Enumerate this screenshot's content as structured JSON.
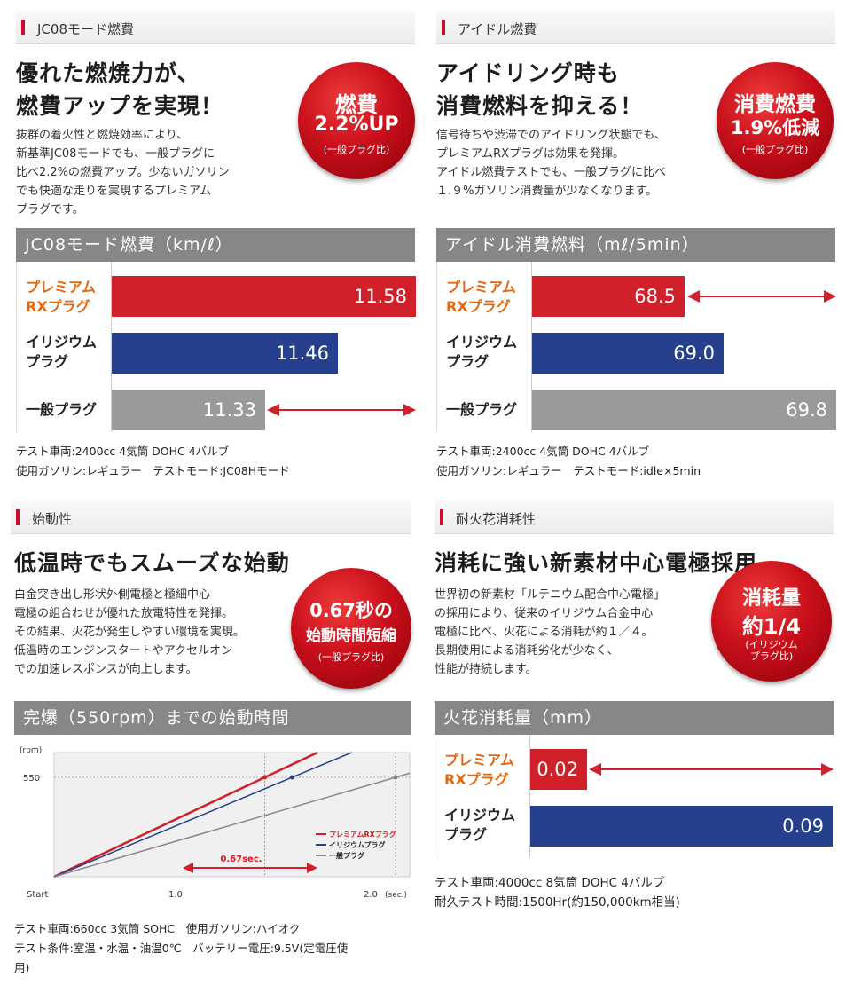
{
  "colors": {
    "accent": "#c8102e",
    "bar_red": "#d0202a",
    "bar_blue": "#26408d",
    "bar_gray": "#9a9a9a",
    "orange_label": "#e3670f"
  },
  "sections": {
    "jc08": {
      "header": "JC08モード燃費",
      "headline": "優れた燃焼力が、\n燃費アップを実現！",
      "body": "抜群の着火性と燃焼効率により、\n新基準JC08モードでも、一般プラグに\n比べ2.2%の燃費アップ。少ないガソリン\nでも快適な走りを実現するプレミアム\nプラグです。",
      "badge": {
        "line1": "燃費",
        "line2": "2.2%UP",
        "line3": "(一般プラグ比)"
      },
      "chart_title": "JC08モード燃費（km/ℓ）",
      "notes": "テスト車両:2400cc 4気筒 DOHC 4バルブ\n使用ガソリン:レギュラー　テストモード:JC08Hモード"
    },
    "idle": {
      "header": "アイドル燃費",
      "headline": "アイドリング時も\n消費燃料を抑える！",
      "body": "信号待ちや渋滞でのアイドリング状態でも、\nプレミアムRXプラグは効果を発揮。\nアイドル燃費テストでも、一般プラグに比べ\n１.９%ガソリン消費量が少なくなります。",
      "badge": {
        "line1": "消費燃費",
        "line2": "1.9%低減",
        "line3": "(一般プラグ比)"
      },
      "chart_title": "アイドル消費燃料（mℓ/5min）",
      "notes": "テスト車両:2400cc 4気筒 DOHC 4バルブ\n使用ガソリン:レギュラー　テストモード:idle×5min"
    },
    "start": {
      "header": "始動性",
      "headline": "低温時でもスムーズな始動",
      "body": "白金突き出し形状外側電極と極細中心\n電極の組合わせが優れた放電特性を発揮。\nその結果、火花が発生しやすい環境を実現。\n低温時のエンジンスタートやアクセルオン\nでの加速レスポンスが向上します。",
      "badge": {
        "line1": "0.67秒の",
        "line2": "始動時間短縮",
        "line3": "(一般プラグ比)"
      },
      "chart_title": "完爆（550rpm）までの始動時間",
      "notes": "テスト車両:660cc 3気筒 SOHC　使用ガソリン:ハイオク\nテスト条件:室温・水温・油温0℃　バッテリー電圧:9.5V(定電圧使\n用)"
    },
    "spark": {
      "header": "耐火花消耗性",
      "headline": "消耗に強い新素材中心電極採用",
      "body": "世界初の新素材「ルテニウム配合中心電極」\nの採用により、従来のイリジウム合金中心\n電極に比べ、火花による消耗が約１／４。\n長期使用による消耗劣化が少なく、\n性能が持続します。",
      "badge": {
        "line1": "消耗量",
        "line2": "約1/4",
        "line3": "(イリジウム\nプラグ比)"
      },
      "chart_title": "火花消耗量（mm）",
      "notes": "テスト車両:4000cc 8気筒 DOHC 4バルブ\n耐久テスト時間:1500Hr(約150,000km相当)"
    }
  },
  "chart_data": [
    {
      "type": "bar",
      "title": "JC08モード燃費（km/ℓ）",
      "categories": [
        "プレミアム\nRXプラグ",
        "イリジウム\nプラグ",
        "一般プラグ"
      ],
      "values": [
        11.58,
        11.46,
        11.33
      ],
      "value_labels": [
        "11.58",
        "11.46",
        "11.33"
      ]
    },
    {
      "type": "bar",
      "title": "アイドル消費燃料（mℓ/5min）",
      "categories": [
        "プレミアム\nRXプラグ",
        "イリジウム\nプラグ",
        "一般プラグ"
      ],
      "values": [
        68.5,
        69.0,
        69.8
      ],
      "value_labels": [
        "68.5",
        "69.0",
        "69.8"
      ]
    },
    {
      "type": "line",
      "title": "完爆（550rpm）までの始動時間",
      "ylabel": "(rpm)",
      "ytick": "550",
      "x_ticks": [
        "Start",
        "1.0",
        "2.0"
      ],
      "x_unit": "(sec.)",
      "series": [
        {
          "name": "プレミアムRXプラグ",
          "time_to_550": 1.08
        },
        {
          "name": "イリジウムプラグ",
          "time_to_550": 1.22
        },
        {
          "name": "一般プラグ",
          "time_to_550": 1.75
        }
      ],
      "annotation": "0.67sec."
    },
    {
      "type": "bar",
      "title": "火花消耗量（mm）",
      "categories": [
        "プレミアム\nRXプラグ",
        "イリジウム\nプラグ"
      ],
      "values": [
        0.02,
        0.09
      ],
      "value_labels": [
        "0.02",
        "0.09"
      ]
    }
  ]
}
